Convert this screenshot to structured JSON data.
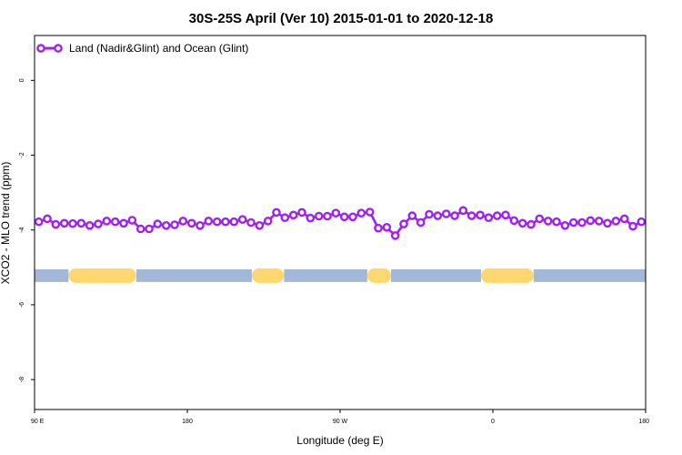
{
  "chart_data": {
    "type": "line",
    "title": "30S-25S April (Ver 10)   2015-01-01 to 2020-12-18",
    "xlabel": "Longitude (deg E)",
    "ylabel": "XCO2 - MLO trend (ppm)",
    "xlim": [
      90,
      450
    ],
    "ylim": [
      -8.8,
      1.2
    ],
    "x_ticks": [
      {
        "value": 90,
        "label": "90 E"
      },
      {
        "value": 180,
        "label": "180"
      },
      {
        "value": 270,
        "label": "90 W"
      },
      {
        "value": 360,
        "label": "0"
      },
      {
        "value": 450,
        "label": "180"
      }
    ],
    "x_ticks_extra": [
      {
        "value": 450,
        "label": "90 E"
      }
    ],
    "y_ticks": [
      {
        "value": 0,
        "label": "0"
      },
      {
        "value": -2,
        "label": "-2"
      },
      {
        "value": -4,
        "label": "-4"
      },
      {
        "value": -6,
        "label": "-6"
      },
      {
        "value": -8,
        "label": "-8"
      }
    ],
    "grid": false,
    "legend_position": "top-left",
    "series": [
      {
        "name": "Land (Nadir&Glint) and Ocean (Glint)",
        "color": "#a020f0",
        "x": [
          92.5,
          97.5,
          102.5,
          107.5,
          112.5,
          117.5,
          122.5,
          127.5,
          132.5,
          137.5,
          142.5,
          147.5,
          152.5,
          157.5,
          162.5,
          167.5,
          172.5,
          177.5,
          182.5,
          187.5,
          192.5,
          197.5,
          202.5,
          207.5,
          212.5,
          217.5,
          222.5,
          227.5,
          232.5,
          237.5,
          242.5,
          247.5,
          252.5,
          257.5,
          262.5,
          267.5,
          272.5,
          277.5,
          282.5,
          287.5,
          292.5,
          297.5,
          302.5,
          307.5,
          312.5,
          317.5,
          322.5,
          327.5,
          332.5,
          337.5,
          342.5,
          347.5,
          352.5,
          357.5,
          362.5,
          367.5,
          372.5,
          377.5,
          382.5,
          387.5,
          392.5,
          397.5,
          402.5,
          407.5,
          412.5,
          417.5,
          422.5,
          427.5,
          432.5,
          437.5,
          442.5,
          447.5
        ],
        "y": [
          -3.78,
          -3.7,
          -3.85,
          -3.82,
          -3.83,
          -3.82,
          -3.88,
          -3.84,
          -3.76,
          -3.78,
          -3.82,
          -3.74,
          -3.97,
          -3.97,
          -3.84,
          -3.88,
          -3.86,
          -3.76,
          -3.82,
          -3.88,
          -3.76,
          -3.78,
          -3.78,
          -3.78,
          -3.72,
          -3.8,
          -3.88,
          -3.76,
          -3.53,
          -3.67,
          -3.6,
          -3.53,
          -3.68,
          -3.63,
          -3.63,
          -3.55,
          -3.65,
          -3.65,
          -3.55,
          -3.52,
          -3.95,
          -3.93,
          -4.15,
          -3.84,
          -3.62,
          -3.8,
          -3.58,
          -3.62,
          -3.57,
          -3.62,
          -3.48,
          -3.62,
          -3.6,
          -3.67,
          -3.62,
          -3.6,
          -3.75,
          -3.82,
          -3.85,
          -3.7,
          -3.76,
          -3.78,
          -3.88,
          -3.8,
          -3.8,
          -3.75,
          -3.76,
          -3.82,
          -3.76,
          -3.7,
          -3.9,
          -3.78
        ]
      }
    ],
    "surface_band": {
      "y": -5.22,
      "land_color": "#fdd870",
      "ocean_color": "#a3b8d8",
      "land_ranges": [
        [
          110,
          150
        ],
        [
          218,
          237
        ],
        [
          286,
          300
        ],
        [
          353,
          384
        ]
      ],
      "ocean_ranges": [
        [
          90,
          110
        ],
        [
          150,
          218
        ],
        [
          237,
          286
        ],
        [
          300,
          353
        ],
        [
          384,
          450
        ]
      ]
    }
  }
}
